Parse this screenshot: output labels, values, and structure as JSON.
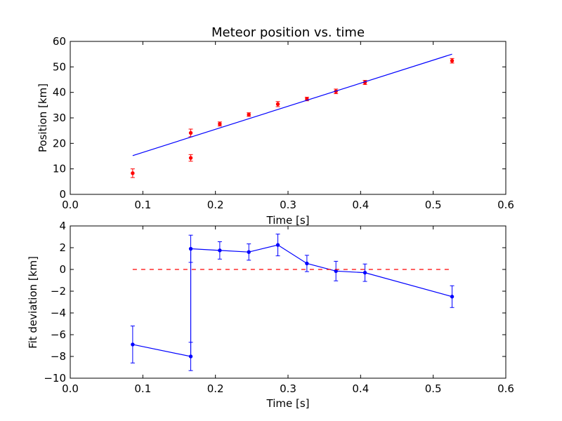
{
  "chart_data": [
    {
      "type": "scatter",
      "title": "Meteor position vs. time",
      "xlabel": "Time [s]",
      "ylabel": "Position [km]",
      "xlim": [
        0.0,
        0.6
      ],
      "ylim": [
        0,
        60
      ],
      "xticks": [
        "0.0",
        "0.1",
        "0.2",
        "0.3",
        "0.4",
        "0.5",
        "0.6"
      ],
      "yticks": [
        "0",
        "10",
        "20",
        "30",
        "40",
        "50",
        "60"
      ],
      "grid": false,
      "series": [
        {
          "kind": "errorbar-points",
          "color": "#ff0000",
          "x": [
            0.086,
            0.166,
            0.166,
            0.206,
            0.246,
            0.286,
            0.326,
            0.366,
            0.406,
            0.526
          ],
          "y": [
            8.3,
            24.1,
            14.3,
            27.6,
            31.3,
            35.4,
            37.4,
            40.4,
            43.9,
            52.4
          ],
          "err": [
            1.7,
            1.5,
            1.3,
            0.8,
            0.7,
            1.0,
            0.7,
            0.9,
            0.8,
            0.9
          ]
        },
        {
          "kind": "line",
          "color": "#0000ff",
          "x": [
            0.086,
            0.526
          ],
          "y": [
            15.2,
            55.0
          ]
        }
      ]
    },
    {
      "type": "line",
      "title": "",
      "xlabel": "Time [s]",
      "ylabel": "Fit deviation [km]",
      "xlim": [
        0.0,
        0.6
      ],
      "ylim": [
        -10,
        4
      ],
      "xticks": [
        "0.0",
        "0.1",
        "0.2",
        "0.3",
        "0.4",
        "0.5",
        "0.6"
      ],
      "yticks": [
        "−10",
        "−8",
        "−6",
        "−4",
        "−2",
        "0",
        "2",
        "4"
      ],
      "grid": false,
      "series": [
        {
          "kind": "errorbar-line",
          "color": "#0000ff",
          "x": [
            0.086,
            0.166,
            0.166,
            0.206,
            0.246,
            0.286,
            0.326,
            0.366,
            0.406,
            0.526
          ],
          "y": [
            -6.9,
            -8.0,
            1.9,
            1.75,
            1.6,
            2.25,
            0.55,
            -0.15,
            -0.3,
            -2.5
          ],
          "err": [
            1.7,
            1.3,
            1.25,
            0.8,
            0.75,
            1.0,
            0.75,
            0.9,
            0.8,
            1.0
          ]
        },
        {
          "kind": "dashed-line",
          "color": "#ff0000",
          "x": [
            0.086,
            0.526
          ],
          "y": [
            0,
            0
          ]
        }
      ]
    }
  ]
}
